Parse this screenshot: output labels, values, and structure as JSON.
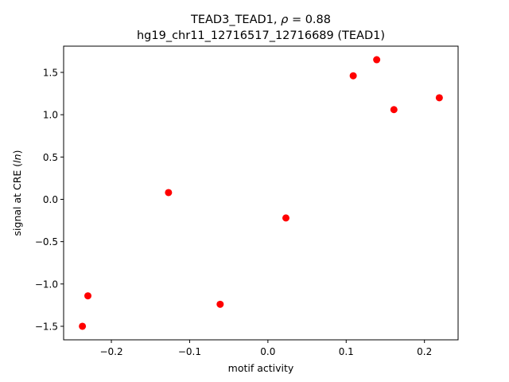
{
  "chart_data": {
    "type": "scatter",
    "title_line1": "TEAD3_TEAD1, ρ = 0.88",
    "title_line2": "hg19_chr11_12716517_12716689 (TEAD1)",
    "xlabel": "motif activity",
    "ylabel": "signal at CRE (ln)",
    "xlim": [
      -0.261,
      0.243
    ],
    "ylim": [
      -1.66,
      1.81
    ],
    "xticks": [
      -0.2,
      -0.1,
      0.0,
      0.1,
      0.2
    ],
    "xtick_labels": [
      "−0.2",
      "−0.1",
      "0.0",
      "0.1",
      "0.2"
    ],
    "yticks": [
      -1.5,
      -1.0,
      -0.5,
      0.0,
      0.5,
      1.0,
      1.5
    ],
    "ytick_labels": [
      "−1.5",
      "−1.0",
      "−0.5",
      "0.0",
      "0.5",
      "1.0",
      "1.5"
    ],
    "grid": false,
    "marker_color": "#ff0000",
    "points": [
      {
        "x": -0.237,
        "y": -1.5
      },
      {
        "x": -0.23,
        "y": -1.14
      },
      {
        "x": -0.127,
        "y": 0.08
      },
      {
        "x": -0.061,
        "y": -1.24
      },
      {
        "x": 0.023,
        "y": -0.22
      },
      {
        "x": 0.109,
        "y": 1.46
      },
      {
        "x": 0.139,
        "y": 1.65
      },
      {
        "x": 0.161,
        "y": 1.06
      },
      {
        "x": 0.219,
        "y": 1.2
      }
    ]
  }
}
